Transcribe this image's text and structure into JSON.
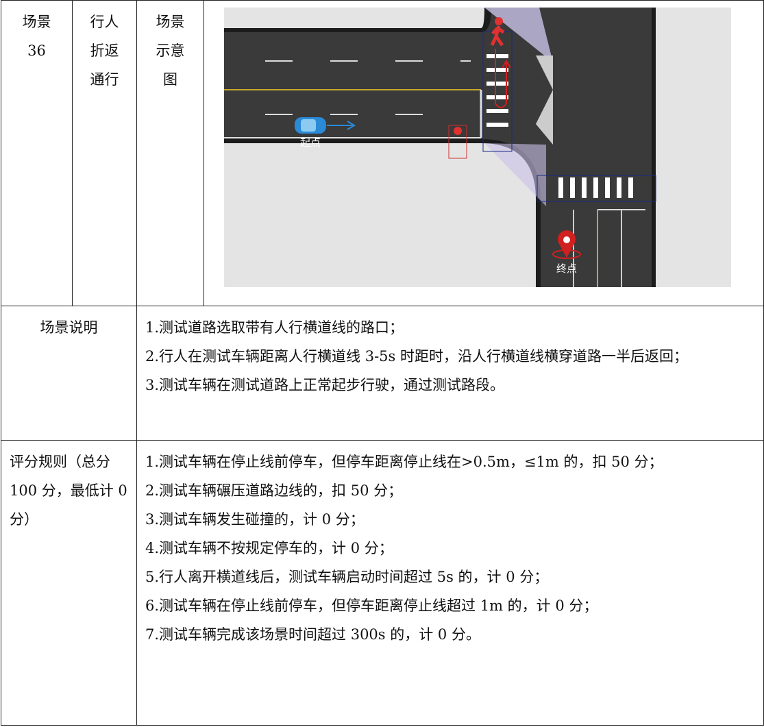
{
  "scene": {
    "number_cell": [
      "场景",
      "36"
    ],
    "name_cell": [
      "行人",
      "折返",
      "通行"
    ],
    "diagram_label": [
      "场景",
      "示意",
      "图"
    ],
    "diagram": {
      "start": "起点",
      "end": "终点"
    }
  },
  "description": {
    "label": "场景说明",
    "items": [
      "1.测试道路选取带有人行横道线的路口；",
      "2.行人在测试车辆距离人行横道线 3-5s 时距时，沿人行横道线横穿道路一半后返回；",
      "3.测试车辆在测试道路上正常起步行驶，通过测试路段。"
    ]
  },
  "scoring": {
    "label": "评分规则（总分 100 分，最低计 0 分）",
    "items": [
      "1.测试车辆在停止线前停车，但停车距离停止线在>0.5m，≤1m 的，扣 50 分；",
      "2.测试车辆碾压道路边线的，扣 50 分；",
      "3.测试车辆发生碰撞的，计 0 分；",
      "4.测试车辆不按规定停车的，计 0 分；",
      "5.行人离开横道线后，测试车辆启动时间超过 5s 的，计 0 分；",
      "6.测试车辆在停止线前停车，但停车距离停止线超过 1m 的，计 0 分；",
      "7.测试车辆完成该场景时间超过 300s 的，计 0 分。"
    ]
  }
}
